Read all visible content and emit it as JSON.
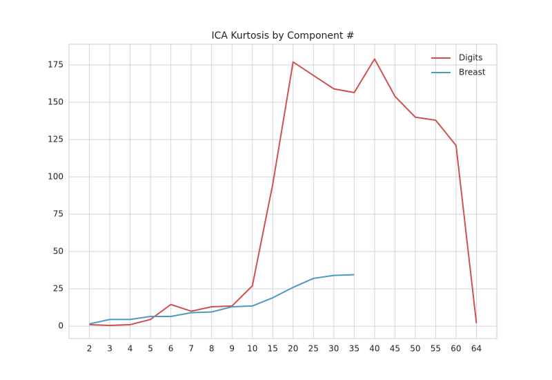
{
  "chart_data": {
    "type": "line",
    "title": "ICA Kurtosis by Component #",
    "categories": [
      "2",
      "3",
      "4",
      "5",
      "6",
      "7",
      "8",
      "9",
      "10",
      "15",
      "20",
      "25",
      "30",
      "35",
      "40",
      "45",
      "50",
      "55",
      "60",
      "64"
    ],
    "series": [
      {
        "name": "Digits",
        "color": "#d0504f",
        "values": [
          1,
          0.5,
          1,
          4.5,
          14.5,
          10,
          13,
          13.5,
          27,
          95,
          177,
          168,
          159,
          156.5,
          179,
          154,
          140,
          138,
          121,
          2
        ]
      },
      {
        "name": "Breast",
        "color": "#4c9abf",
        "values": [
          1.5,
          4.5,
          4.5,
          6.5,
          6.5,
          9,
          9.5,
          13,
          13.5,
          19,
          26,
          32,
          34,
          34.5,
          null,
          null,
          null,
          null,
          null,
          null
        ]
      }
    ],
    "ylim": [
      -8.3,
      188.9
    ],
    "yticks": [
      0,
      25,
      50,
      75,
      100,
      125,
      150,
      175
    ],
    "grid": true,
    "legend": "upper right"
  }
}
